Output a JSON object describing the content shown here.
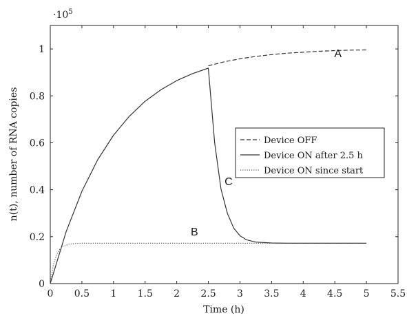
{
  "chart_data": {
    "type": "line",
    "xlabel": "Time (h)",
    "ylabel": "n(t), number of RNA copies",
    "y_scale_label": "·10",
    "y_scale_exp": "5",
    "xlim": [
      0,
      5.5
    ],
    "ylim": [
      0,
      1.1
    ],
    "x_ticks": [
      0,
      0.5,
      1,
      1.5,
      2,
      2.5,
      3,
      3.5,
      4,
      4.5,
      5,
      5.5
    ],
    "x_tick_labels": [
      "0",
      "0.5",
      "1",
      "1.5",
      "2",
      "2.5",
      "3",
      "3.5",
      "4",
      "4.5",
      "5",
      "5.5"
    ],
    "y_ticks": [
      0,
      0.2,
      0.4,
      0.6,
      0.8,
      1
    ],
    "y_tick_labels": [
      "0",
      "0.2",
      "0.4",
      "0.6",
      "0.8",
      "1"
    ],
    "grid": false,
    "legend_position": "right",
    "series": [
      {
        "name": "Device OFF",
        "style": "dashed",
        "color": "#333333",
        "x": [
          2.5,
          2.75,
          3,
          3.25,
          3.5,
          3.75,
          4,
          4.25,
          4.5,
          4.75,
          5
        ],
        "y": [
          0.928,
          0.945,
          0.958,
          0.968,
          0.976,
          0.982,
          0.986,
          0.99,
          0.993,
          0.995,
          0.996
        ]
      },
      {
        "name": "Device ON after 2.5 h",
        "style": "solid",
        "color": "#333333",
        "x": [
          0,
          0.25,
          0.5,
          0.75,
          1,
          1.25,
          1.5,
          1.75,
          2,
          2.25,
          2.5,
          2.6,
          2.7,
          2.8,
          2.9,
          3,
          3.1,
          3.25,
          3.5,
          3.75,
          4,
          5
        ],
        "y": [
          0,
          0.221,
          0.393,
          0.528,
          0.632,
          0.713,
          0.777,
          0.826,
          0.865,
          0.895,
          0.918,
          0.6,
          0.403,
          0.3,
          0.237,
          0.204,
          0.187,
          0.177,
          0.173,
          0.172,
          0.172,
          0.172
        ]
      },
      {
        "name": "Device ON since start",
        "style": "dotted",
        "color": "#555555",
        "x": [
          0,
          0.05,
          0.1,
          0.15,
          0.2,
          0.3,
          0.4,
          0.5,
          0.75,
          1,
          2,
          3,
          4,
          5
        ],
        "y": [
          0,
          0.081,
          0.124,
          0.146,
          0.158,
          0.168,
          0.171,
          0.172,
          0.172,
          0.172,
          0.172,
          0.172,
          0.172,
          0.172
        ]
      }
    ],
    "annotations": [
      {
        "text": "A",
        "x": 4.55,
        "y": 0.965
      },
      {
        "text": "B",
        "x": 2.28,
        "y": 0.205
      },
      {
        "text": "C",
        "x": 2.82,
        "y": 0.42
      }
    ]
  }
}
